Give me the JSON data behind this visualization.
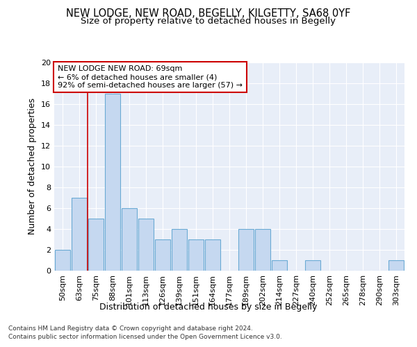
{
  "title1": "NEW LODGE, NEW ROAD, BEGELLY, KILGETTY, SA68 0YF",
  "title2": "Size of property relative to detached houses in Begelly",
  "xlabel": "Distribution of detached houses by size in Begelly",
  "ylabel": "Number of detached properties",
  "bar_labels": [
    "50sqm",
    "63sqm",
    "75sqm",
    "88sqm",
    "101sqm",
    "113sqm",
    "126sqm",
    "139sqm",
    "151sqm",
    "164sqm",
    "177sqm",
    "189sqm",
    "202sqm",
    "214sqm",
    "227sqm",
    "240sqm",
    "252sqm",
    "265sqm",
    "278sqm",
    "290sqm",
    "303sqm"
  ],
  "bar_values": [
    2,
    7,
    5,
    17,
    6,
    5,
    3,
    4,
    3,
    3,
    0,
    4,
    4,
    1,
    0,
    1,
    0,
    0,
    0,
    0,
    1
  ],
  "bar_color": "#c5d8f0",
  "bar_edgecolor": "#6aaad4",
  "vline_x": 1.5,
  "vline_color": "#cc0000",
  "annotation_title": "NEW LODGE NEW ROAD: 69sqm",
  "annotation_line1": "← 6% of detached houses are smaller (4)",
  "annotation_line2": "92% of semi-detached houses are larger (57) →",
  "annotation_box_color": "#cc0000",
  "footnote1": "Contains HM Land Registry data © Crown copyright and database right 2024.",
  "footnote2": "Contains public sector information licensed under the Open Government Licence v3.0.",
  "background_color": "#e8eef8",
  "ylim": [
    0,
    20
  ],
  "yticks": [
    0,
    2,
    4,
    6,
    8,
    10,
    12,
    14,
    16,
    18,
    20
  ],
  "title_fontsize": 10.5,
  "subtitle_fontsize": 9.5,
  "axis_label_fontsize": 9,
  "tick_fontsize": 8,
  "footnote_fontsize": 6.5
}
